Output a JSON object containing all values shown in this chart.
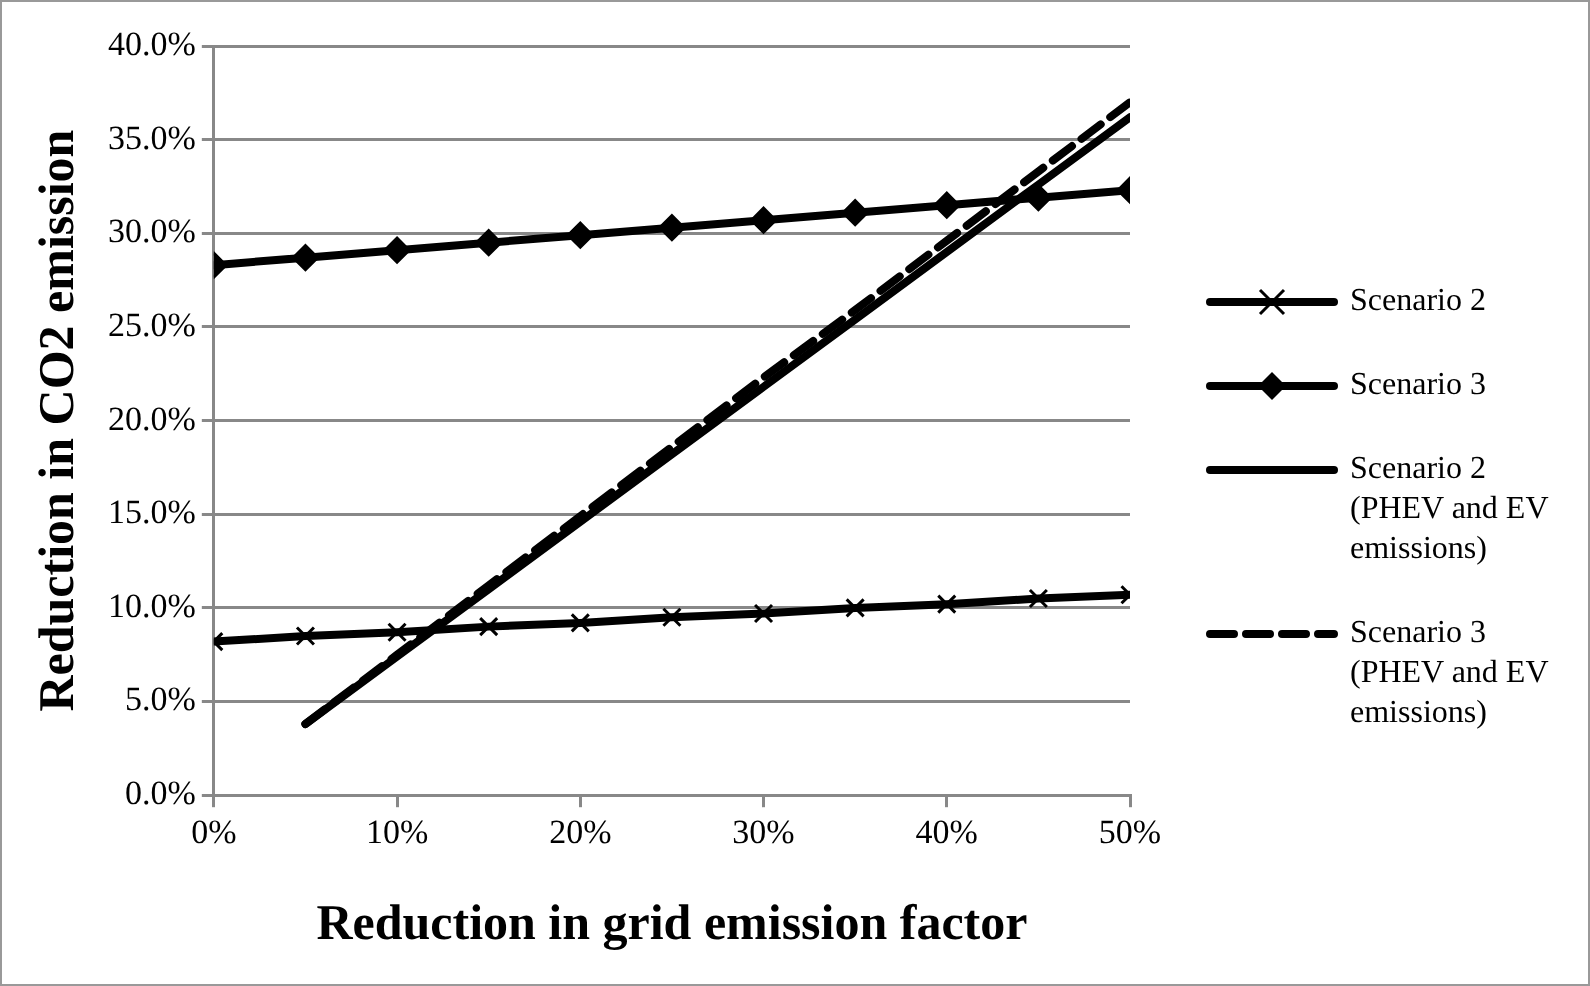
{
  "chart_data": {
    "type": "line",
    "xlabel": "Reduction in grid emission factor",
    "ylabel": "Reduction in CO2 emission",
    "x": [
      0,
      5,
      10,
      15,
      20,
      25,
      30,
      35,
      40,
      45,
      50
    ],
    "xlim": [
      0,
      50
    ],
    "xticks": [
      {
        "value": 0,
        "label": "0%"
      },
      {
        "value": 10,
        "label": "10%"
      },
      {
        "value": 20,
        "label": "20%"
      },
      {
        "value": 30,
        "label": "30%"
      },
      {
        "value": 40,
        "label": "40%"
      },
      {
        "value": 50,
        "label": "50%"
      }
    ],
    "ylim": [
      0,
      40
    ],
    "yticks": [
      {
        "value": 0,
        "label": "0.0%"
      },
      {
        "value": 5,
        "label": "5.0%"
      },
      {
        "value": 10,
        "label": "10.0%"
      },
      {
        "value": 15,
        "label": "15.0%"
      },
      {
        "value": 20,
        "label": "20.0%"
      },
      {
        "value": 25,
        "label": "25.0%"
      },
      {
        "value": 30,
        "label": "30.0%"
      },
      {
        "value": 35,
        "label": "35.0%"
      },
      {
        "value": 40,
        "label": "40.0%"
      }
    ],
    "grid": "y",
    "legend": "right",
    "series": [
      {
        "name": "Scenario 2",
        "color": "#000000",
        "marker": "cross",
        "line_style": "solid",
        "values": [
          8.2,
          8.5,
          8.7,
          9.0,
          9.2,
          9.5,
          9.7,
          10.0,
          10.2,
          10.5,
          10.7
        ]
      },
      {
        "name": "Scenario 3",
        "color": "#000000",
        "marker": "diamond",
        "line_style": "solid",
        "values": [
          28.3,
          28.7,
          29.1,
          29.5,
          29.9,
          30.3,
          30.7,
          31.1,
          31.5,
          31.9,
          32.3
        ]
      },
      {
        "name": "Scenario 2 (PHEV and EV emissions)",
        "color": "#000000",
        "marker": "none",
        "line_style": "solid",
        "values": [
          null,
          3.8,
          7.4,
          11.0,
          14.6,
          18.2,
          21.8,
          25.4,
          29.0,
          32.6,
          36.2
        ]
      },
      {
        "name": "Scenario 3 (PHEV and EV emissions)",
        "color": "#000000",
        "marker": "none",
        "line_style": "dashed",
        "values": [
          null,
          3.8,
          7.5,
          11.2,
          14.9,
          18.6,
          22.3,
          25.9,
          29.6,
          33.3,
          37.0
        ]
      }
    ]
  }
}
